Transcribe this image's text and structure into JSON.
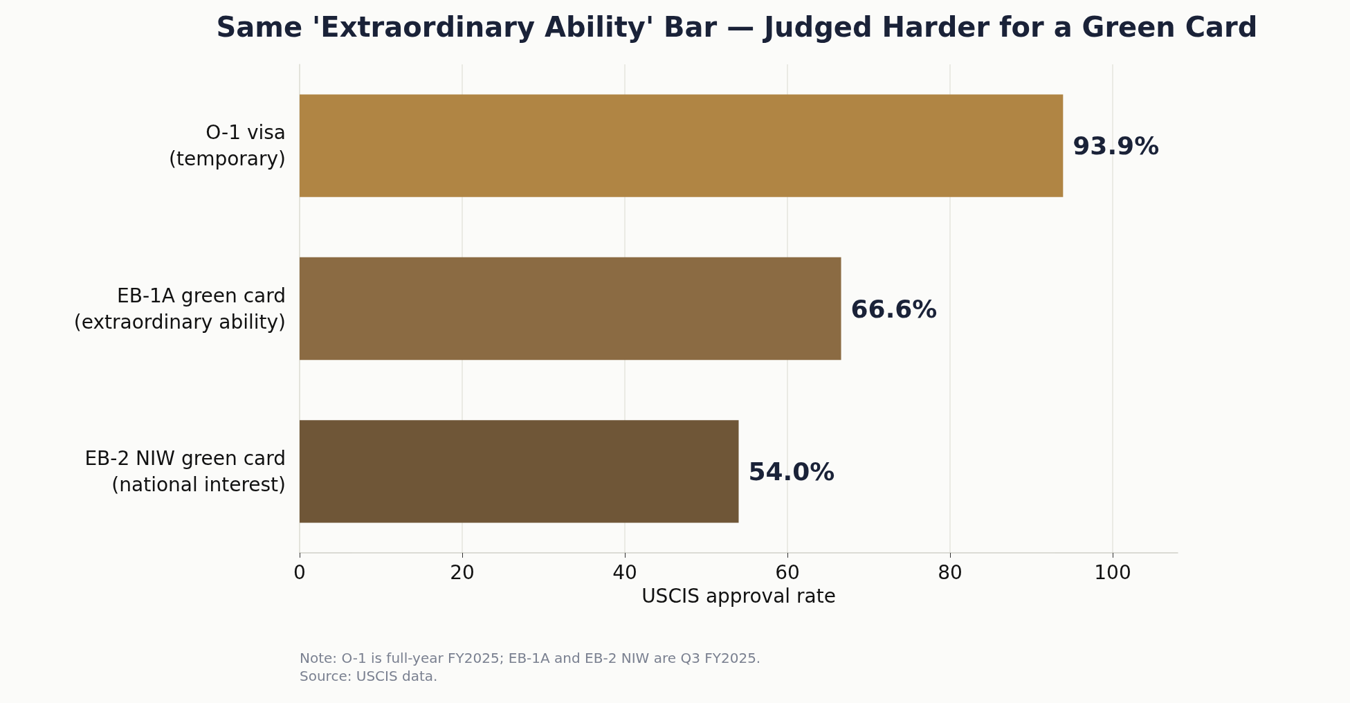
{
  "chart_data": {
    "type": "bar",
    "orientation": "horizontal",
    "title": "Same 'Extraordinary Ability' Bar — Judged Harder for a Green Card",
    "categories": [
      "O-1 visa\n(temporary)",
      "EB-1A green card\n(extraordinary ability)",
      "EB-2 NIW green card\n(national interest)"
    ],
    "values": [
      93.9,
      66.6,
      54.0
    ],
    "colors": [
      "#b08544",
      "#8b6b43",
      "#6f5637"
    ],
    "value_labels": [
      "93.9%",
      "66.6%",
      "54.0%"
    ],
    "xlabel": "USCIS approval rate",
    "xlim": [
      0,
      108
    ],
    "xticks": [
      0,
      20,
      40,
      60,
      80,
      100
    ],
    "grid": "x",
    "annotations": [
      "Note: O-1 is full-year FY2025; EB-1A and EB-2 NIW are Q3 FY2025.",
      "Source: USCIS data."
    ]
  }
}
